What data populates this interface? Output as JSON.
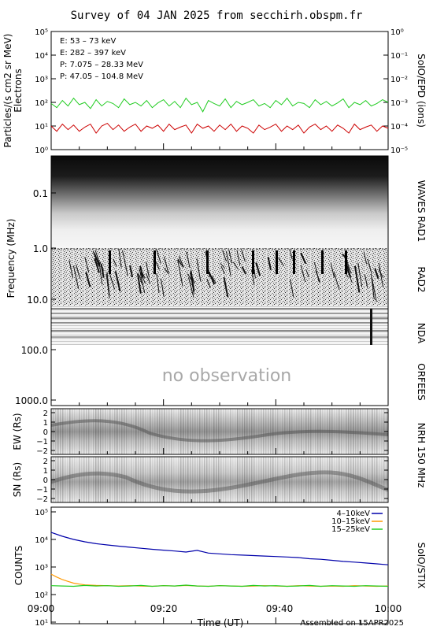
{
  "title": "Survey of 04 JAN 2025 from secchirh.obspm.fr",
  "xaxis": {
    "label": "Time (UT)",
    "ticks": [
      "09:00",
      "09:20",
      "09:40",
      "10:00"
    ],
    "range_minutes": [
      0,
      60
    ]
  },
  "footer": "Assembled on 15APR2025",
  "panels": {
    "epd": {
      "right_label": "SoIO/EPD (ions)",
      "ylabel_line1": "Particles/(s cm2 sr MeV)",
      "ylabel_line2": "Electrons",
      "left_ticks": [
        "10⁰",
        "10¹",
        "10²",
        "10³",
        "10⁴",
        "10⁵"
      ],
      "right_ticks": [
        "10⁻⁵",
        "10⁻⁴",
        "10⁻³",
        "10⁻²",
        "10⁻¹",
        "10⁰"
      ],
      "legend": [
        {
          "text": "E: 53 – 73 keV",
          "color": "#22cc22"
        },
        {
          "text": "E: 282 – 397 keV",
          "color": "#cc0000"
        },
        {
          "text": "P: 7.075 – 28.33 MeV",
          "color": "#000000"
        },
        {
          "text": "P: 47.05 – 104.8 MeV",
          "color": "#0000cc"
        }
      ]
    },
    "radio": {
      "ylabel": "Frequency (MHz)",
      "ticks": [
        "0.1",
        "1.0",
        "10.0",
        "100.0",
        "1000.0"
      ],
      "right_labels": [
        "WAVES RAD1",
        "RAD2",
        "NDA",
        "ORFEES"
      ],
      "no_obs": "no observation"
    },
    "nrh_ew": {
      "ylabel": "EW (Rs)",
      "ticks": [
        "2",
        "1",
        "0",
        "−1",
        "−2"
      ]
    },
    "nrh_sn": {
      "ylabel": "SN (Rs)",
      "ticks": [
        "2",
        "1",
        "0",
        "−1",
        "−2"
      ]
    },
    "nrh_label": "NRH 150 MHz",
    "stix": {
      "ylabel": "COUNTS",
      "right_label": "SoIO/STIX",
      "ticks": [
        "10¹",
        "10²",
        "10³",
        "10⁴",
        "10⁵"
      ],
      "legend": [
        {
          "text": "4–10keV",
          "color": "#0000aa"
        },
        {
          "text": "10–15keV",
          "color": "#ff9900"
        },
        {
          "text": "15–25keV",
          "color": "#22cc22"
        }
      ]
    }
  },
  "chart_data": [
    {
      "type": "line",
      "panel": "SoIO/EPD",
      "yscale": "log",
      "ylim": [
        1,
        100000
      ],
      "xlim_minutes": [
        0,
        60
      ],
      "series": [
        {
          "name": "E: 53 – 73 keV",
          "color": "#22cc22",
          "x": [
            0,
            1,
            2,
            3,
            4,
            5,
            6,
            7,
            8,
            9,
            10,
            11,
            12,
            13,
            14,
            15,
            16,
            17,
            18,
            19,
            20,
            21,
            22,
            23,
            24,
            25,
            26,
            27,
            28,
            29,
            30,
            31,
            32,
            33,
            34,
            35,
            36,
            37,
            38,
            39,
            40,
            41,
            42,
            43,
            44,
            45,
            46,
            47,
            48,
            49,
            50,
            51,
            52,
            53,
            54,
            55,
            56,
            57,
            58,
            59,
            60
          ],
          "y": [
            90,
            60,
            120,
            70,
            150,
            80,
            100,
            55,
            130,
            70,
            110,
            90,
            60,
            140,
            80,
            100,
            70,
            120,
            60,
            95,
            130,
            70,
            110,
            60,
            150,
            80,
            100,
            40,
            120,
            90,
            70,
            140,
            60,
            110,
            80,
            100,
            130,
            70,
            90,
            60,
            120,
            80,
            150,
            70,
            100,
            90,
            60,
            130,
            80,
            110,
            70,
            95,
            140,
            60,
            100,
            80,
            120,
            70,
            90,
            130,
            100
          ]
        },
        {
          "name": "E: 282 – 397 keV",
          "color": "#cc0000",
          "x": [
            0,
            1,
            2,
            3,
            4,
            5,
            6,
            7,
            8,
            9,
            10,
            11,
            12,
            13,
            14,
            15,
            16,
            17,
            18,
            19,
            20,
            21,
            22,
            23,
            24,
            25,
            26,
            27,
            28,
            29,
            30,
            31,
            32,
            33,
            34,
            35,
            36,
            37,
            38,
            39,
            40,
            41,
            42,
            43,
            44,
            45,
            46,
            47,
            48,
            49,
            50,
            51,
            52,
            53,
            54,
            55,
            56,
            57,
            58,
            59,
            60
          ],
          "y": [
            10,
            6,
            12,
            7,
            11,
            6,
            9,
            12,
            5,
            10,
            13,
            7,
            11,
            6,
            9,
            12,
            6,
            10,
            8,
            11,
            6,
            12,
            7,
            9,
            11,
            5,
            12,
            8,
            10,
            6,
            11,
            7,
            12,
            6,
            10,
            8,
            5,
            11,
            7,
            9,
            12,
            6,
            10,
            7,
            11,
            5,
            9,
            12,
            7,
            10,
            6,
            11,
            8,
            5,
            12,
            7,
            9,
            11,
            6,
            10,
            8
          ]
        }
      ]
    },
    {
      "type": "heatmap",
      "panel": "Radio spectrogram (WAVES RAD1 / RAD2 / NDA / ORFEES)",
      "yscale": "log",
      "ylim_mhz": [
        0.02,
        1000
      ],
      "observed_up_to_mhz": 70,
      "annotation": "no observation"
    },
    {
      "type": "heatmap",
      "panel": "NRH 150 MHz EW",
      "ylim_rs": [
        -2.5,
        2.5
      ]
    },
    {
      "type": "heatmap",
      "panel": "NRH 150 MHz SN",
      "ylim_rs": [
        -2.5,
        2.5
      ]
    },
    {
      "type": "line",
      "panel": "SoIO/STIX",
      "yscale": "log",
      "ylim": [
        10,
        100000
      ],
      "xlim_minutes": [
        0,
        60
      ],
      "series": [
        {
          "name": "4–10keV",
          "color": "#0000aa",
          "x": [
            0,
            2,
            4,
            6,
            8,
            10,
            12,
            14,
            16,
            18,
            20,
            22,
            24,
            26,
            28,
            30,
            32,
            34,
            36,
            38,
            40,
            42,
            44,
            46,
            48,
            50,
            52,
            54,
            56,
            58,
            60
          ],
          "y": [
            18000,
            13000,
            10000,
            8200,
            7000,
            6300,
            5700,
            5200,
            4800,
            4400,
            4100,
            3800,
            3500,
            4000,
            3200,
            3000,
            2800,
            2700,
            2600,
            2500,
            2400,
            2300,
            2200,
            2000,
            1900,
            1750,
            1600,
            1500,
            1400,
            1300,
            1200
          ]
        },
        {
          "name": "10–15keV",
          "color": "#ff9900",
          "x": [
            0,
            1,
            2,
            3,
            4,
            5,
            6,
            8,
            10,
            12,
            14,
            16,
            18,
            20,
            22,
            24,
            26,
            28,
            30,
            32,
            34,
            36,
            38,
            40,
            42,
            44,
            46,
            48,
            50,
            52,
            54,
            56,
            58,
            60
          ],
          "y": [
            550,
            430,
            350,
            300,
            260,
            240,
            225,
            215,
            210,
            205,
            210,
            205,
            200,
            210,
            205,
            215,
            205,
            200,
            210,
            205,
            200,
            205,
            210,
            205,
            200,
            210,
            205,
            200,
            205,
            200,
            210,
            205,
            200,
            205
          ]
        },
        {
          "name": "15–25keV",
          "color": "#22cc22",
          "x": [
            0,
            2,
            4,
            6,
            8,
            10,
            12,
            14,
            16,
            18,
            20,
            22,
            24,
            26,
            28,
            30,
            32,
            34,
            36,
            38,
            40,
            42,
            44,
            46,
            48,
            50,
            52,
            54,
            56,
            58,
            60
          ],
          "y": [
            210,
            205,
            200,
            215,
            205,
            210,
            200,
            205,
            215,
            200,
            210,
            205,
            220,
            205,
            200,
            210,
            205,
            200,
            215,
            205,
            210,
            200,
            205,
            215,
            200,
            210,
            205,
            200,
            210,
            205,
            200
          ]
        }
      ]
    }
  ]
}
